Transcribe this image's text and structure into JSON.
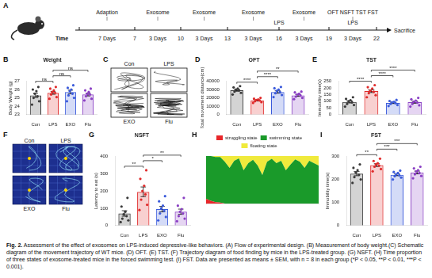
{
  "panel_A": {
    "panel": "A",
    "axis_label": "Time",
    "ticks": [
      7,
      10,
      13,
      16,
      19,
      22
    ],
    "intervals": [
      {
        "duration": "7 Days",
        "labels": [
          "Adaption"
        ]
      },
      {
        "duration": "3 Days",
        "labels": [
          "Exosome"
        ]
      },
      {
        "duration": "3 Days",
        "labels": [
          "Exosome"
        ]
      },
      {
        "duration": "3 Days",
        "labels": [
          "Exosome"
        ],
        "end_label": "LPS"
      },
      {
        "duration": "3 Days",
        "labels": [
          "Exosome"
        ]
      },
      {
        "duration": "3 Days",
        "labels": [
          "OFT",
          "NSFT",
          "TST",
          "FST"
        ],
        "sub_label": "LPS"
      }
    ],
    "end_label": "Sacrifice"
  },
  "panel_C": {
    "panel": "C",
    "labels": [
      "Con",
      "LPS",
      "EXO",
      "Flu"
    ]
  },
  "panel_F": {
    "panel": "F",
    "labels": [
      "Con",
      "LPS",
      "EXO",
      "Flu"
    ]
  },
  "chart_data": [
    {
      "panel": "B",
      "type": "bar",
      "title": "Weight",
      "y_label": "Body Weight (g)",
      "categories": [
        "Con",
        "LPS",
        "EXO",
        "Flu"
      ],
      "values": [
        25.3,
        25.6,
        25.7,
        25.4
      ],
      "errors": [
        0.25,
        0.17,
        0.22,
        0.17
      ],
      "points": [
        [
          24.2,
          24.6,
          25.0,
          25.2,
          25.5,
          25.8,
          26.0,
          26.3
        ],
        [
          24.9,
          25.1,
          25.4,
          25.6,
          25.7,
          25.9,
          26.1,
          26.3
        ],
        [
          24.6,
          25.0,
          25.3,
          25.5,
          25.8,
          26.0,
          26.2,
          26.5
        ],
        [
          24.7,
          24.9,
          25.2,
          25.4,
          25.5,
          25.7,
          25.9,
          26.1
        ]
      ],
      "colors": [
        "#3a3a3a",
        "#e02b2b",
        "#3b5bdb",
        "#8a3fc4"
      ],
      "ylim": [
        23,
        27
      ],
      "yticks": [
        23,
        24,
        25,
        26,
        27
      ],
      "grid": false,
      "comparisons": [
        {
          "groups": [
            "Con",
            "LPS"
          ],
          "label": "ns"
        },
        {
          "groups": [
            "LPS",
            "EXO"
          ],
          "label": "ns"
        },
        {
          "groups": [
            "LPS",
            "Flu"
          ],
          "label": "ns"
        }
      ]
    },
    {
      "panel": "D",
      "type": "bar",
      "title": "OFT",
      "y_label": "Total movement distance(cm)",
      "categories": [
        "Con",
        "LPS",
        "EXO",
        "Flu"
      ],
      "values": [
        29000,
        17000,
        27000,
        23000
      ],
      "errors": [
        1100,
        700,
        1400,
        1100
      ],
      "points": [
        [
          24000,
          26000,
          27500,
          29000,
          30000,
          31000,
          32500,
          34000
        ],
        [
          14000,
          15000,
          16000,
          17000,
          17500,
          18000,
          19000,
          20000
        ],
        [
          21000,
          23500,
          25500,
          27000,
          28500,
          30000,
          31500,
          33000
        ],
        [
          18500,
          20000,
          21500,
          23000,
          24000,
          25000,
          26500,
          27500
        ]
      ],
      "colors": [
        "#3a3a3a",
        "#e02b2b",
        "#3b5bdb",
        "#8a3fc4"
      ],
      "ylim": [
        0,
        40000
      ],
      "yticks": [
        0,
        10000,
        20000,
        30000,
        40000
      ],
      "grid": false,
      "comparisons": [
        {
          "groups": [
            "Con",
            "LPS"
          ],
          "label": "****"
        },
        {
          "groups": [
            "LPS",
            "EXO"
          ],
          "label": "****"
        },
        {
          "groups": [
            "LPS",
            "Flu"
          ],
          "label": "**"
        }
      ]
    },
    {
      "panel": "E",
      "type": "bar",
      "title": "TST",
      "y_label": "Immobility time(s)",
      "categories": [
        "Con",
        "LPS",
        "EXO",
        "Flu"
      ],
      "values": [
        95,
        175,
        88,
        93
      ],
      "errors": [
        8,
        10,
        5,
        8
      ],
      "points": [
        [
          60,
          72,
          80,
          92,
          100,
          108,
          118,
          130
        ],
        [
          130,
          145,
          160,
          170,
          180,
          195,
          205,
          220
        ],
        [
          65,
          72,
          80,
          86,
          92,
          96,
          102,
          110
        ],
        [
          60,
          70,
          80,
          90,
          97,
          105,
          115,
          125
        ]
      ],
      "colors": [
        "#3a3a3a",
        "#e02b2b",
        "#3b5bdb",
        "#8a3fc4"
      ],
      "ylim": [
        0,
        250
      ],
      "yticks": [
        0,
        50,
        100,
        150,
        200,
        250
      ],
      "grid": false,
      "comparisons": [
        {
          "groups": [
            "Con",
            "LPS"
          ],
          "label": "****"
        },
        {
          "groups": [
            "LPS",
            "EXO"
          ],
          "label": "****"
        },
        {
          "groups": [
            "LPS",
            "Flu"
          ],
          "label": "****"
        }
      ]
    },
    {
      "panel": "G",
      "type": "bar",
      "title": "NSFT",
      "y_label": "Latency to eat (s)",
      "categories": [
        "Con",
        "LPS",
        "EXO",
        "Flu"
      ],
      "values": [
        70,
        195,
        95,
        80
      ],
      "errors": [
        16,
        28,
        16,
        15
      ],
      "points": [
        [
          20,
          30,
          40,
          55,
          65,
          80,
          110,
          160
        ],
        [
          90,
          120,
          150,
          180,
          200,
          230,
          270,
          320
        ],
        [
          30,
          50,
          70,
          85,
          100,
          115,
          140,
          170
        ],
        [
          25,
          40,
          55,
          70,
          80,
          95,
          115,
          160
        ]
      ],
      "colors": [
        "#3a3a3a",
        "#e02b2b",
        "#3b5bdb",
        "#8a3fc4"
      ],
      "ylim": [
        0,
        400
      ],
      "yticks": [
        0,
        100,
        200,
        300,
        400
      ],
      "grid": false,
      "comparisons": [
        {
          "groups": [
            "Con",
            "LPS"
          ],
          "label": "**"
        },
        {
          "groups": [
            "LPS",
            "EXO"
          ],
          "label": "*"
        },
        {
          "groups": [
            "LPS",
            "Flu"
          ],
          "label": "**"
        }
      ]
    },
    {
      "panel": "H",
      "type": "area",
      "stacked": true,
      "legend": "top",
      "tick_labels": false,
      "x": [
        0,
        1,
        2,
        3,
        4,
        5,
        6,
        7,
        8,
        9,
        10,
        11,
        12,
        13,
        14,
        15,
        16,
        17,
        18,
        19,
        20,
        21,
        22,
        23,
        24
      ],
      "xlim": [
        0,
        24
      ],
      "ylim": [
        0,
        100
      ],
      "series": [
        {
          "name": "struggling state",
          "color": "#e8262a",
          "values": [
            10,
            6,
            3,
            2,
            0,
            0,
            0,
            0,
            0,
            0,
            0,
            0,
            0,
            0,
            0,
            0,
            0,
            0,
            0,
            0,
            0,
            0,
            0,
            0,
            0
          ]
        },
        {
          "name": "swimming state",
          "color": "#1a9a2a",
          "values": [
            90,
            94,
            95,
            96,
            88,
            75,
            90,
            95,
            70,
            85,
            92,
            80,
            60,
            88,
            94,
            85,
            90,
            70,
            82,
            93,
            88,
            75,
            90,
            85,
            80
          ]
        },
        {
          "name": "floating state",
          "color": "#f0ea3c",
          "values": [
            0,
            0,
            2,
            2,
            12,
            25,
            10,
            5,
            30,
            15,
            8,
            20,
            40,
            12,
            6,
            15,
            10,
            30,
            18,
            7,
            12,
            25,
            10,
            15,
            20
          ]
        }
      ]
    },
    {
      "panel": "I",
      "type": "bar",
      "title": "FST",
      "y_label": "Immobility time(s)",
      "categories": [
        "Con",
        "LPS",
        "EXO",
        "Flu"
      ],
      "values": [
        225,
        262,
        220,
        230
      ],
      "errors": [
        9,
        6,
        4,
        6
      ],
      "points": [
        [
          185,
          200,
          210,
          220,
          230,
          240,
          250,
          265
        ],
        [
          235,
          245,
          255,
          260,
          265,
          270,
          280,
          290
        ],
        [
          200,
          208,
          214,
          218,
          222,
          228,
          232,
          238
        ],
        [
          205,
          215,
          222,
          228,
          235,
          240,
          248,
          255
        ]
      ],
      "colors": [
        "#3a3a3a",
        "#e02b2b",
        "#3b5bdb",
        "#8a3fc4"
      ],
      "ylim": [
        0,
        300
      ],
      "yticks": [
        0,
        100,
        200,
        300
      ],
      "grid": false,
      "comparisons": [
        {
          "groups": [
            "Con",
            "LPS"
          ],
          "label": "**"
        },
        {
          "groups": [
            "LPS",
            "EXO"
          ],
          "label": "***"
        },
        {
          "groups": [
            "LPS",
            "Flu"
          ],
          "label": "***"
        }
      ]
    }
  ],
  "caption": {
    "label": "Fig. 2.",
    "text": "Assessment of the effect of exosomes on LPS-induced depressive-like behaviors. (A) Flow of experimental design. (B) Measurement of body weight.(C) Schematic diagram of the movement trajectory of WT mice. (D) OFT. (E) TST. (F) Trajectory diagram of food finding by mice in the LPS-treated group. (G) NSFT. (H) Time proportion of three states of exosome-treated mice in the forced swimming test. (I) FST. Data are presented as means ± SEM, with n = 8 in each group (*P < 0.05, **P < 0.01, ***P < 0.001)."
  }
}
